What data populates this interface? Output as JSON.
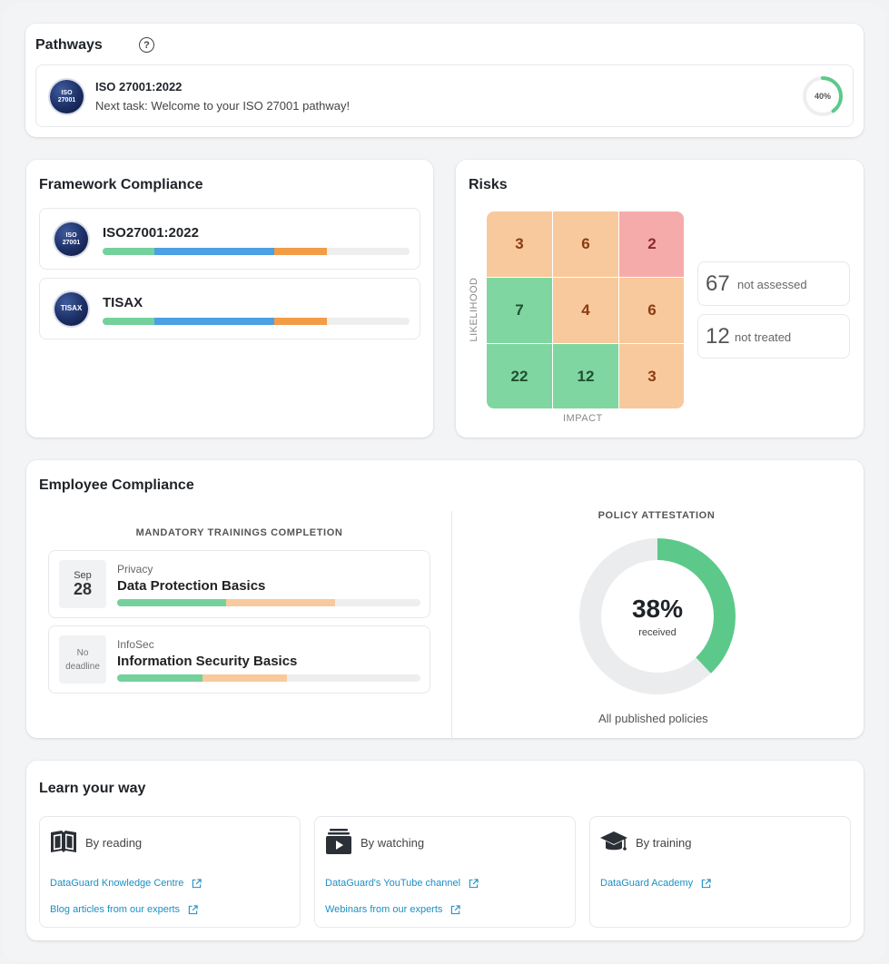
{
  "pathways": {
    "title": "Pathways",
    "help_icon": "?",
    "item": {
      "badge_line1": "ISO",
      "badge_line2": "27001",
      "name": "ISO 27001:2022",
      "next_task": "Next task: Welcome to your ISO 27001 pathway!",
      "progress_label": "40%",
      "progress_fraction": 0.4,
      "progress_color": "#5cc98a"
    }
  },
  "framework": {
    "title": "Framework Compliance",
    "items": [
      {
        "badge_line1": "ISO",
        "badge_line2": "27001",
        "name": "ISO27001:2022",
        "segments": [
          0.17,
          0.39,
          0.17
        ]
      },
      {
        "badge_line1": "TISAX",
        "badge_line2": "",
        "name": "TISAX",
        "segments": [
          0.17,
          0.39,
          0.17
        ]
      }
    ],
    "segment_colors": [
      "#74d19b",
      "#4ca0e3",
      "#f29c48"
    ]
  },
  "risks": {
    "title": "Risks",
    "matrix": [
      [
        "3",
        "6",
        "2"
      ],
      [
        "7",
        "4",
        "6"
      ],
      [
        "22",
        "12",
        "3"
      ]
    ],
    "matrix_colors": [
      [
        "#f8c99c",
        "#f8c99c",
        "#f6abab"
      ],
      [
        "#7fd6a0",
        "#f8c99c",
        "#f8c99c"
      ],
      [
        "#7fd6a0",
        "#7fd6a0",
        "#f8c99c"
      ]
    ],
    "text_colors": {
      "#f8c99c": "#8a3b12",
      "#f6abab": "#8a2b2b",
      "#7fd6a0": "#1f4f33"
    },
    "y_axis": "LIKELIHOOD",
    "x_axis": "IMPACT",
    "not_assessed": {
      "count": "67",
      "label": "not assessed"
    },
    "not_treated": {
      "count": "12",
      "label": "not treated"
    }
  },
  "employee": {
    "title": "Employee Compliance",
    "trainings_label": "MANDATORY TRAININGS COMPLETION",
    "trainings": [
      {
        "month": "Sep",
        "day": "28",
        "no_deadline": "",
        "category": "Privacy",
        "name": "Data Protection Basics",
        "segments": [
          0.36,
          0.36
        ]
      },
      {
        "month": "",
        "day": "",
        "no_deadline_1": "No",
        "no_deadline_2": "deadline",
        "category": "InfoSec",
        "name": "Information Security Basics",
        "segments": [
          0.28,
          0.28
        ]
      }
    ],
    "training_colors": [
      "#74d19b",
      "#f8c99c"
    ],
    "policy_label": "POLICY ATTESTATION",
    "policy_pct": "38%",
    "policy_fraction": 0.38,
    "policy_sub": "received",
    "policy_foot": "All published policies",
    "policy_color": "#5cc98a"
  },
  "learn": {
    "title": "Learn your way",
    "columns": [
      {
        "icon": "book-icon",
        "heading": "By reading",
        "links": [
          "DataGuard Knowledge Centre",
          "Blog articles from our experts"
        ]
      },
      {
        "icon": "video-icon",
        "heading": "By watching",
        "links": [
          "DataGuard's YouTube channel",
          "Webinars from our experts"
        ]
      },
      {
        "icon": "graduation-cap-icon",
        "heading": "By training",
        "links": [
          "DataGuard Academy"
        ]
      }
    ]
  }
}
